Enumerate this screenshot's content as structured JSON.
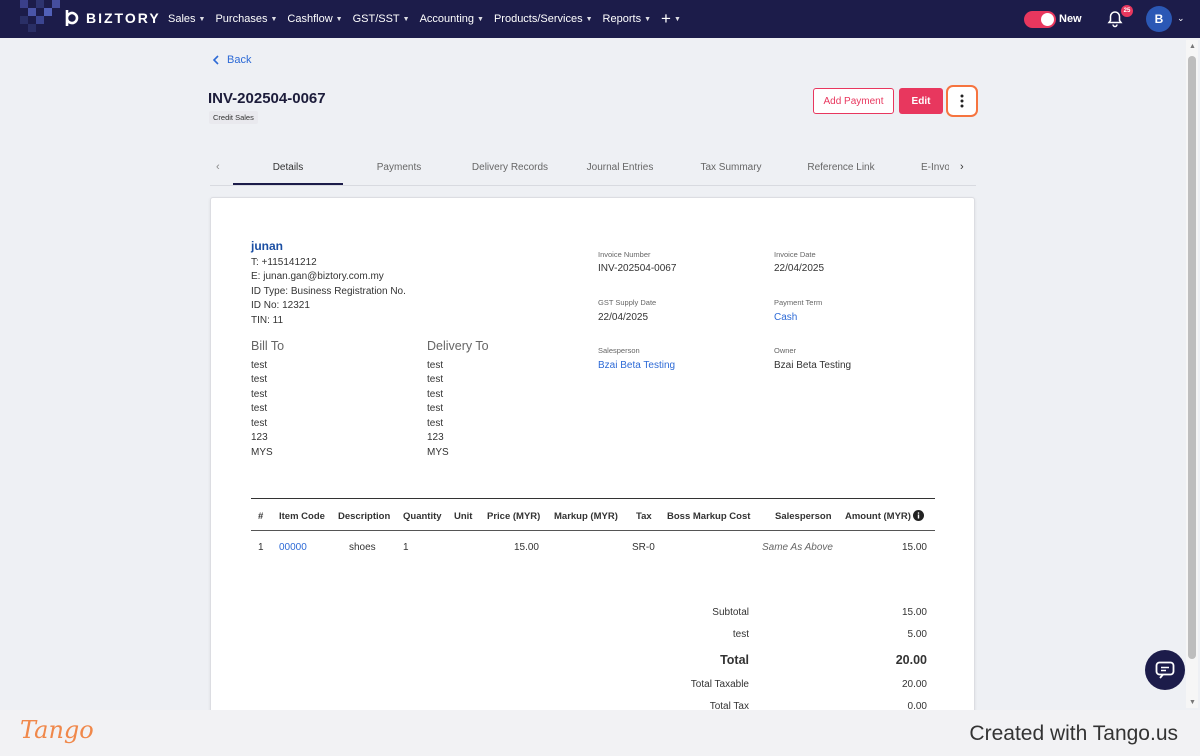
{
  "app": {
    "brand": "BIZTORY"
  },
  "nav": {
    "items": [
      "Sales",
      "Purchases",
      "Cashflow",
      "GST/SST",
      "Accounting",
      "Products/Services",
      "Reports"
    ],
    "plus": "+"
  },
  "topbar": {
    "toggle_label": "New",
    "notifications": "25",
    "avatar_initial": "B"
  },
  "page": {
    "back_label": "Back",
    "invoice_number": "INV-202504-0067",
    "type_badge": "Credit Sales",
    "add_payment_label": "Add Payment",
    "edit_label": "Edit"
  },
  "tabs": [
    "Details",
    "Payments",
    "Delivery Records",
    "Journal Entries",
    "Tax Summary",
    "Reference Link",
    "E-Invoice"
  ],
  "customer": {
    "name": "junan",
    "contact": [
      "T: +115141212",
      "E: junan.gan@biztory.com.my",
      "ID Type: Business Registration No.",
      "ID No: 12321",
      "TIN: 11"
    ],
    "bill_to_label": "Bill To",
    "delivery_to_label": "Delivery To",
    "bill_to": [
      "test",
      "test",
      "test",
      "test",
      "test",
      "123",
      "MYS"
    ],
    "delivery_to": [
      "test",
      "test",
      "test",
      "test",
      "test",
      "123",
      "MYS"
    ]
  },
  "meta": {
    "invoice_number_label": "Invoice Number",
    "invoice_number": "INV-202504-0067",
    "invoice_date_label": "Invoice Date",
    "invoice_date": "22/04/2025",
    "gst_supply_date_label": "GST Supply Date",
    "gst_supply_date": "22/04/2025",
    "payment_term_label": "Payment Term",
    "payment_term": "Cash",
    "salesperson_label": "Salesperson",
    "salesperson": "Bzai Beta Testing",
    "owner_label": "Owner",
    "owner": "Bzai Beta Testing"
  },
  "table": {
    "headers": [
      "#",
      "Item Code",
      "Description",
      "Quantity",
      "Unit",
      "Price (MYR)",
      "Markup (MYR)",
      "Tax",
      "Boss Markup Cost",
      "Salesperson",
      "Amount (MYR)"
    ],
    "rows": [
      {
        "no": "1",
        "item_code": "00000",
        "description": "shoes",
        "quantity": "1",
        "unit": "",
        "price": "15.00",
        "markup": "",
        "tax": "SR-0",
        "boss_markup": "",
        "salesperson": "Same As Above",
        "amount": "15.00"
      }
    ]
  },
  "summary": {
    "subtotal_label": "Subtotal",
    "subtotal": "15.00",
    "test_label": "test",
    "test_value": "5.00",
    "total_label": "Total",
    "total": "20.00",
    "total_taxable_label": "Total Taxable",
    "total_taxable": "20.00",
    "total_tax_label": "Total Tax",
    "total_tax": "0.00"
  },
  "footer": {
    "tango_logo": "Tango",
    "created_with": "Created with Tango.us"
  },
  "colors": {
    "navbar": "#1c1c4a",
    "accent": "#e8375e",
    "link": "#2d6ad6",
    "highlight": "#f6743f"
  }
}
